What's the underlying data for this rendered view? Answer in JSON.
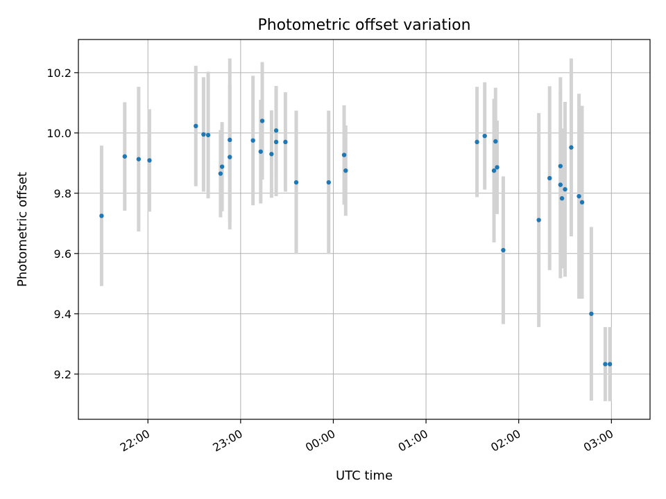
{
  "chart_data": {
    "type": "scatter",
    "title": "Photometric offset variation",
    "xlabel": "UTC time",
    "ylabel": "Photometric offset",
    "x_axis_kind": "time",
    "xlim": [
      "21:15",
      "03:25"
    ],
    "ylim": [
      9.05,
      10.31
    ],
    "grid": true,
    "colors": {
      "points": "#1f77b4",
      "errorbars": "#d3d3d3",
      "grid": "#b0b0b0"
    },
    "x_ticks": [
      "22:00",
      "23:00",
      "00:00",
      "01:00",
      "02:00",
      "03:00"
    ],
    "y_ticks": [
      "9.2",
      "9.4",
      "9.6",
      "9.8",
      "10.0",
      "10.2"
    ],
    "points": [
      {
        "x": "21:30",
        "y": 9.725,
        "err": 0.233
      },
      {
        "x": "21:45",
        "y": 9.922,
        "err": 0.18
      },
      {
        "x": "21:54",
        "y": 9.913,
        "err": 0.24
      },
      {
        "x": "22:01",
        "y": 9.909,
        "err": 0.17
      },
      {
        "x": "22:31",
        "y": 10.023,
        "err": 0.2
      },
      {
        "x": "22:36",
        "y": 9.995,
        "err": 0.19
      },
      {
        "x": "22:39",
        "y": 9.993,
        "err": 0.21
      },
      {
        "x": "22:47",
        "y": 9.865,
        "err": 0.145
      },
      {
        "x": "22:48",
        "y": 9.888,
        "err": 0.148
      },
      {
        "x": "22:53",
        "y": 9.92,
        "err": 0.24
      },
      {
        "x": "22:53",
        "y": 9.977,
        "err": 0.27
      },
      {
        "x": "23:08",
        "y": 9.975,
        "err": 0.215
      },
      {
        "x": "23:13",
        "y": 9.938,
        "err": 0.172
      },
      {
        "x": "23:14",
        "y": 10.04,
        "err": 0.195
      },
      {
        "x": "23:20",
        "y": 9.93,
        "err": 0.145
      },
      {
        "x": "23:23",
        "y": 9.97,
        "err": 0.18
      },
      {
        "x": "23:23",
        "y": 10.008,
        "err": 0.148
      },
      {
        "x": "23:29",
        "y": 9.97,
        "err": 0.165
      },
      {
        "x": "23:36",
        "y": 9.836,
        "err": 0.238
      },
      {
        "x": "23:57",
        "y": 9.836,
        "err": 0.238
      },
      {
        "x": "00:07",
        "y": 9.927,
        "err": 0.165
      },
      {
        "x": "00:08",
        "y": 9.875,
        "err": 0.15
      },
      {
        "x": "01:33",
        "y": 9.97,
        "err": 0.183
      },
      {
        "x": "01:38",
        "y": 9.99,
        "err": 0.178
      },
      {
        "x": "01:44",
        "y": 9.875,
        "err": 0.238
      },
      {
        "x": "01:45",
        "y": 9.972,
        "err": 0.178
      },
      {
        "x": "01:46",
        "y": 9.886,
        "err": 0.155
      },
      {
        "x": "01:50",
        "y": 9.611,
        "err": 0.245
      },
      {
        "x": "02:13",
        "y": 9.711,
        "err": 0.355
      },
      {
        "x": "02:20",
        "y": 9.85,
        "err": 0.305
      },
      {
        "x": "02:27",
        "y": 9.828,
        "err": 0.31
      },
      {
        "x": "02:27",
        "y": 9.89,
        "err": 0.295
      },
      {
        "x": "02:28",
        "y": 9.783,
        "err": 0.232
      },
      {
        "x": "02:30",
        "y": 9.813,
        "err": 0.29
      },
      {
        "x": "02:34",
        "y": 9.952,
        "err": 0.295
      },
      {
        "x": "02:39",
        "y": 9.79,
        "err": 0.34
      },
      {
        "x": "02:41",
        "y": 9.77,
        "err": 0.32
      },
      {
        "x": "02:47",
        "y": 9.4,
        "err": 0.288
      },
      {
        "x": "02:56",
        "y": 9.233,
        "err": 0.123
      },
      {
        "x": "02:59",
        "y": 9.233,
        "err": 0.123
      }
    ]
  }
}
